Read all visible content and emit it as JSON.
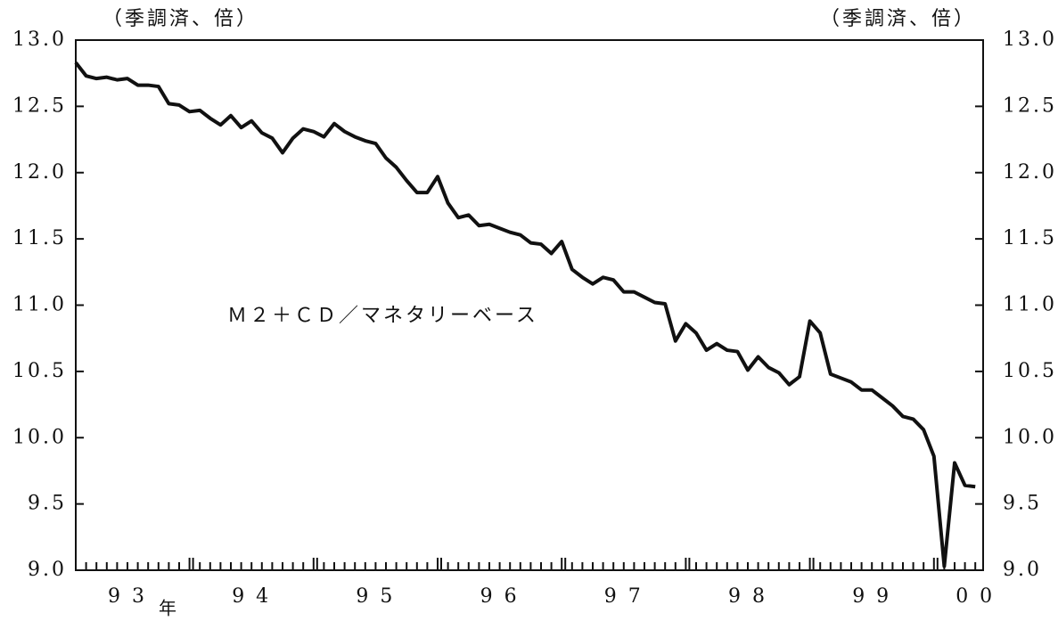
{
  "chart_data": {
    "type": "line",
    "y_unit_left": "（季調済、倍）",
    "y_unit_right": "（季調済、倍）",
    "annotation": "Ｍ２＋ＣＤ／マネタリーベース",
    "x_unit": "年",
    "categories": [
      null,
      null,
      null,
      null,
      null,
      "9 3",
      null,
      null,
      null,
      null,
      null,
      null,
      null,
      null,
      null,
      null,
      null,
      "9 4",
      null,
      null,
      null,
      null,
      null,
      null,
      null,
      null,
      null,
      null,
      null,
      "9 5",
      null,
      null,
      null,
      null,
      null,
      null,
      null,
      null,
      null,
      null,
      null,
      "9 6",
      null,
      null,
      null,
      null,
      null,
      null,
      null,
      null,
      null,
      null,
      null,
      "9 7",
      null,
      null,
      null,
      null,
      null,
      null,
      null,
      null,
      null,
      null,
      null,
      "9 8",
      null,
      null,
      null,
      null,
      null,
      null,
      null,
      null,
      null,
      null,
      null,
      "9 9",
      null,
      null,
      null,
      null,
      null,
      null,
      null,
      null,
      null,
      "0 0"
    ],
    "series": [
      {
        "name": "Ｍ２＋ＣＤ／マネタリーベース",
        "color": "#111111",
        "values": [
          12.83,
          12.73,
          12.71,
          12.72,
          12.7,
          12.71,
          12.66,
          12.66,
          12.65,
          12.52,
          12.51,
          12.46,
          12.47,
          12.41,
          12.36,
          12.43,
          12.34,
          12.39,
          12.3,
          12.26,
          12.15,
          12.26,
          12.33,
          12.31,
          12.27,
          12.37,
          12.31,
          12.27,
          12.24,
          12.22,
          12.11,
          12.04,
          11.94,
          11.85,
          11.85,
          11.97,
          11.77,
          11.66,
          11.68,
          11.6,
          11.61,
          11.58,
          11.55,
          11.53,
          11.47,
          11.46,
          11.39,
          11.48,
          11.27,
          11.21,
          11.16,
          11.21,
          11.19,
          11.1,
          11.1,
          11.06,
          11.02,
          11.01,
          10.73,
          10.86,
          10.79,
          10.66,
          10.71,
          10.66,
          10.65,
          10.51,
          10.61,
          10.53,
          10.49,
          10.4,
          10.46,
          10.88,
          10.79,
          10.48,
          10.45,
          10.42,
          10.36,
          10.36,
          10.3,
          10.24,
          10.16,
          10.14,
          10.06,
          9.86,
          9.03,
          9.81,
          9.64,
          9.63
        ]
      }
    ],
    "ylim": [
      9,
      13
    ],
    "yticks": [
      {
        "value": 9,
        "label": "9.0"
      },
      {
        "value": 9.5,
        "label": "9.5"
      },
      {
        "value": 10,
        "label": "10.0"
      },
      {
        "value": 10.5,
        "label": "10.5"
      },
      {
        "value": 11,
        "label": "11.0"
      },
      {
        "value": 11.5,
        "label": "11.5"
      },
      {
        "value": 12,
        "label": "12.0"
      },
      {
        "value": 12.5,
        "label": "12.5"
      },
      {
        "value": 13,
        "label": "13.0"
      }
    ],
    "y2lim": [
      9,
      13
    ],
    "y2ticks": [
      {
        "value": 9,
        "label": "9.0"
      },
      {
        "value": 9.5,
        "label": "9.5"
      },
      {
        "value": 10,
        "label": "10.0"
      },
      {
        "value": 10.5,
        "label": "10.5"
      },
      {
        "value": 11,
        "label": "11.0"
      },
      {
        "value": 11.5,
        "label": "11.5"
      },
      {
        "value": 12,
        "label": "12.0"
      },
      {
        "value": 12.5,
        "label": "12.5"
      },
      {
        "value": 13,
        "label": "13.0"
      }
    ],
    "grid": false
  }
}
